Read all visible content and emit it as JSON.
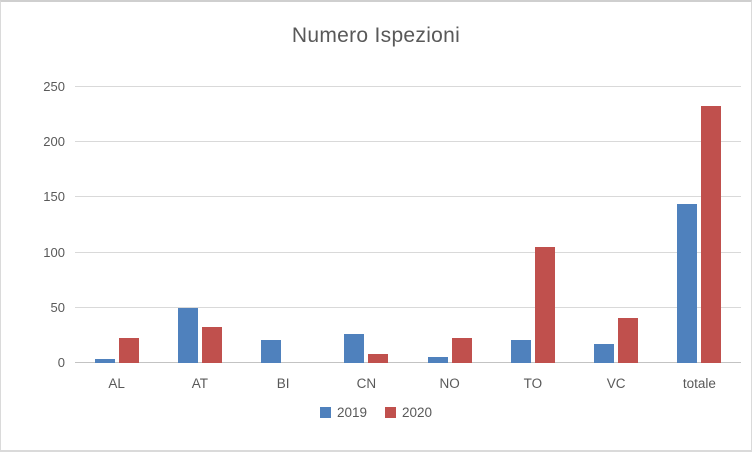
{
  "title": "Numero Ispezioni",
  "colors": {
    "series_2019": "#4F81BD",
    "series_2020": "#C0504D",
    "gridline": "#D9D9D9",
    "axis_line": "#C3C3C3",
    "text": "#595959",
    "background": "#FFFFFF",
    "border": "#D9D9D9"
  },
  "legend": {
    "items": [
      {
        "label": "2019",
        "color": "#4F81BD"
      },
      {
        "label": "2020",
        "color": "#C0504D"
      }
    ],
    "position": "bottom-center"
  },
  "chart_data": {
    "type": "bar",
    "title": "Numero Ispezioni",
    "categories": [
      "AL",
      "AT",
      "BI",
      "CN",
      "NO",
      "TO",
      "VC",
      "totale"
    ],
    "series": [
      {
        "name": "2019",
        "color": "#4F81BD",
        "values": [
          4,
          50,
          21,
          26,
          5,
          21,
          17,
          144
        ]
      },
      {
        "name": "2020",
        "color": "#C0504D",
        "values": [
          23,
          33,
          0,
          8,
          23,
          105,
          41,
          233
        ]
      }
    ],
    "xlabel": "",
    "ylabel": "",
    "ylim": [
      0,
      250
    ],
    "yticks": [
      0,
      50,
      100,
      150,
      200,
      250
    ],
    "grid": true,
    "legend_position": "bottom"
  }
}
